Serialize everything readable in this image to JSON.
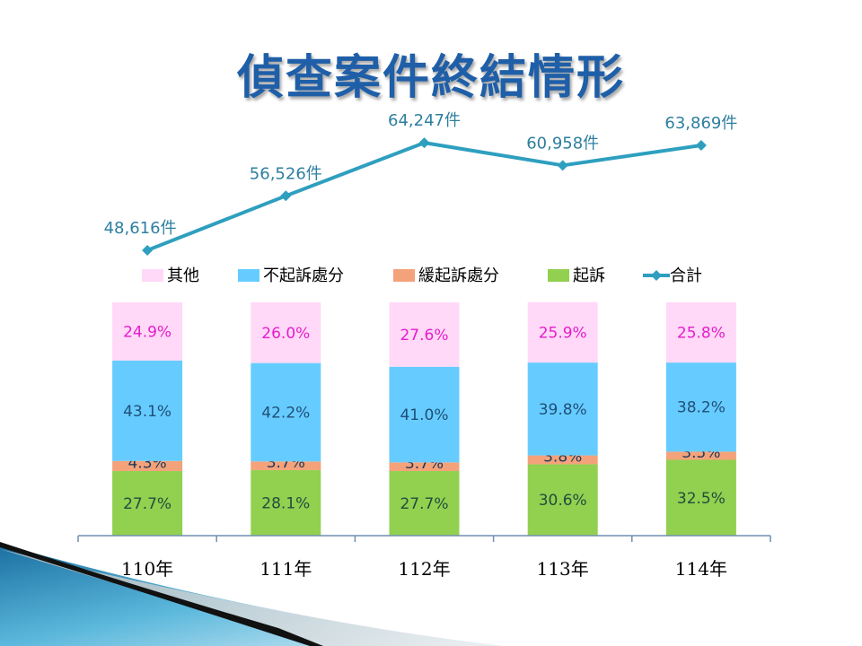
{
  "slide": {
    "title": "偵查案件終結情形"
  },
  "chart_data": {
    "type": "bar",
    "stacked": true,
    "percent_stacked": true,
    "categories": [
      "110年",
      "111年",
      "112年",
      "113年",
      "114年"
    ],
    "series": [
      {
        "name": "起訴",
        "values": [
          27.7,
          28.1,
          27.7,
          30.6,
          32.5
        ],
        "labels": [
          "27.7%",
          "28.1%",
          "27.7%",
          "30.6%",
          "32.5%"
        ],
        "color": "#92d050",
        "label_color": "#1f4e3d"
      },
      {
        "name": "緩起訴處分",
        "values": [
          4.3,
          3.7,
          3.7,
          3.8,
          3.5
        ],
        "labels": [
          "4.3%",
          "3.7%",
          "3.7%",
          "3.8%",
          "3.5%"
        ],
        "color": "#f4a27a",
        "label_color": "#1f3a5a"
      },
      {
        "name": "不起訴處分",
        "values": [
          43.1,
          42.2,
          41.0,
          39.8,
          38.2
        ],
        "labels": [
          "43.1%",
          "42.2%",
          "41.0%",
          "39.8%",
          "38.2%"
        ],
        "color": "#66ccff",
        "label_color": "#1f4e79"
      },
      {
        "name": "其他",
        "values": [
          24.9,
          26.0,
          27.6,
          25.9,
          25.8
        ],
        "labels": [
          "24.9%",
          "26.0%",
          "27.6%",
          "25.9%",
          "25.8%"
        ],
        "color": "#ffd9f7",
        "label_color": "#e61ccf"
      }
    ],
    "line_series": {
      "name": "合計",
      "values": [
        48616,
        56526,
        64247,
        60958,
        63869
      ],
      "labels": [
        "48,616件",
        "56,526件",
        "64,247件",
        "60,958件",
        "63,869件"
      ],
      "color": "#2e9fbf",
      "label_color": "#2e7f9f"
    },
    "legend_order": [
      "其他",
      "不起訴處分",
      "緩起訴處分",
      "起訴",
      "合計"
    ],
    "legend_position": "middle",
    "ylim": [
      0,
      100
    ],
    "line_ylim": [
      40000,
      70000
    ],
    "grid": false
  }
}
